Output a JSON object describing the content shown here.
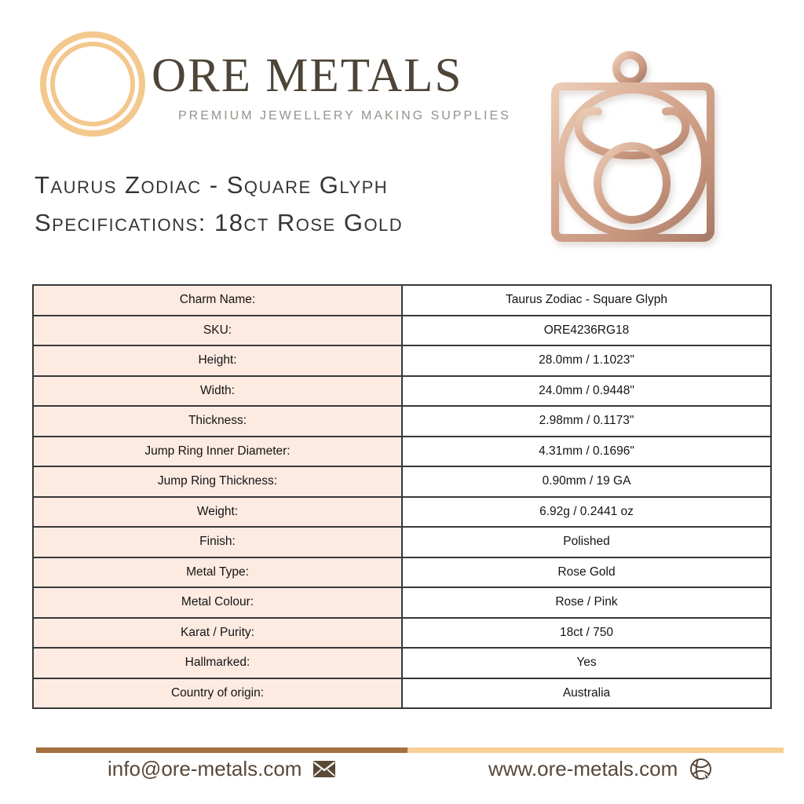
{
  "brand": {
    "name": "ORE METALS",
    "tagline": "PREMIUM JEWELLERY MAKING SUPPLIES",
    "logo_icon": "double-ring-icon",
    "logo_ring_color": "#f3c88e",
    "name_color": "#4e4437",
    "tagline_color": "#96918c"
  },
  "title": {
    "line1": "Taurus Zodiac - Square Glyph",
    "line2": "Specifications: 18ct Rose Gold"
  },
  "product_image": {
    "name": "rose-gold-taurus-square-charm",
    "metal_light": "#ecccb6",
    "metal_mid": "#cfa089",
    "metal_dark": "#a87b66"
  },
  "spec_table": {
    "label_bg": "#fdebe2",
    "value_bg": "#ffffff",
    "border_color": "#383838",
    "rows": [
      {
        "label": "Charm Name:",
        "value": "Taurus Zodiac - Square Glyph"
      },
      {
        "label": "SKU:",
        "value": "ORE4236RG18"
      },
      {
        "label": "Height:",
        "value": "28.0mm / 1.1023\""
      },
      {
        "label": "Width:",
        "value": "24.0mm / 0.9448\""
      },
      {
        "label": "Thickness:",
        "value": "2.98mm / 0.1173\""
      },
      {
        "label": "Jump Ring Inner Diameter:",
        "value": "4.31mm / 0.1696\""
      },
      {
        "label": "Jump Ring Thickness:",
        "value": "0.90mm / 19 GA"
      },
      {
        "label": "Weight:",
        "value": "6.92g / 0.2441 oz"
      },
      {
        "label": "Finish:",
        "value": "Polished"
      },
      {
        "label": "Metal Type:",
        "value": "Rose Gold"
      },
      {
        "label": "Metal Colour:",
        "value": "Rose / Pink"
      },
      {
        "label": "Karat / Purity:",
        "value": "18ct / 750"
      },
      {
        "label": "Hallmarked:",
        "value": "Yes"
      },
      {
        "label": "Country of origin:",
        "value": "Australia"
      }
    ]
  },
  "footer": {
    "email": "info@ore-metals.com",
    "website": "www.ore-metals.com",
    "email_icon": "envelope-icon",
    "website_icon": "globe-icon",
    "bar_left_color": "#a3713f",
    "bar_right_color": "#f7cf96",
    "text_color": "#564739"
  }
}
